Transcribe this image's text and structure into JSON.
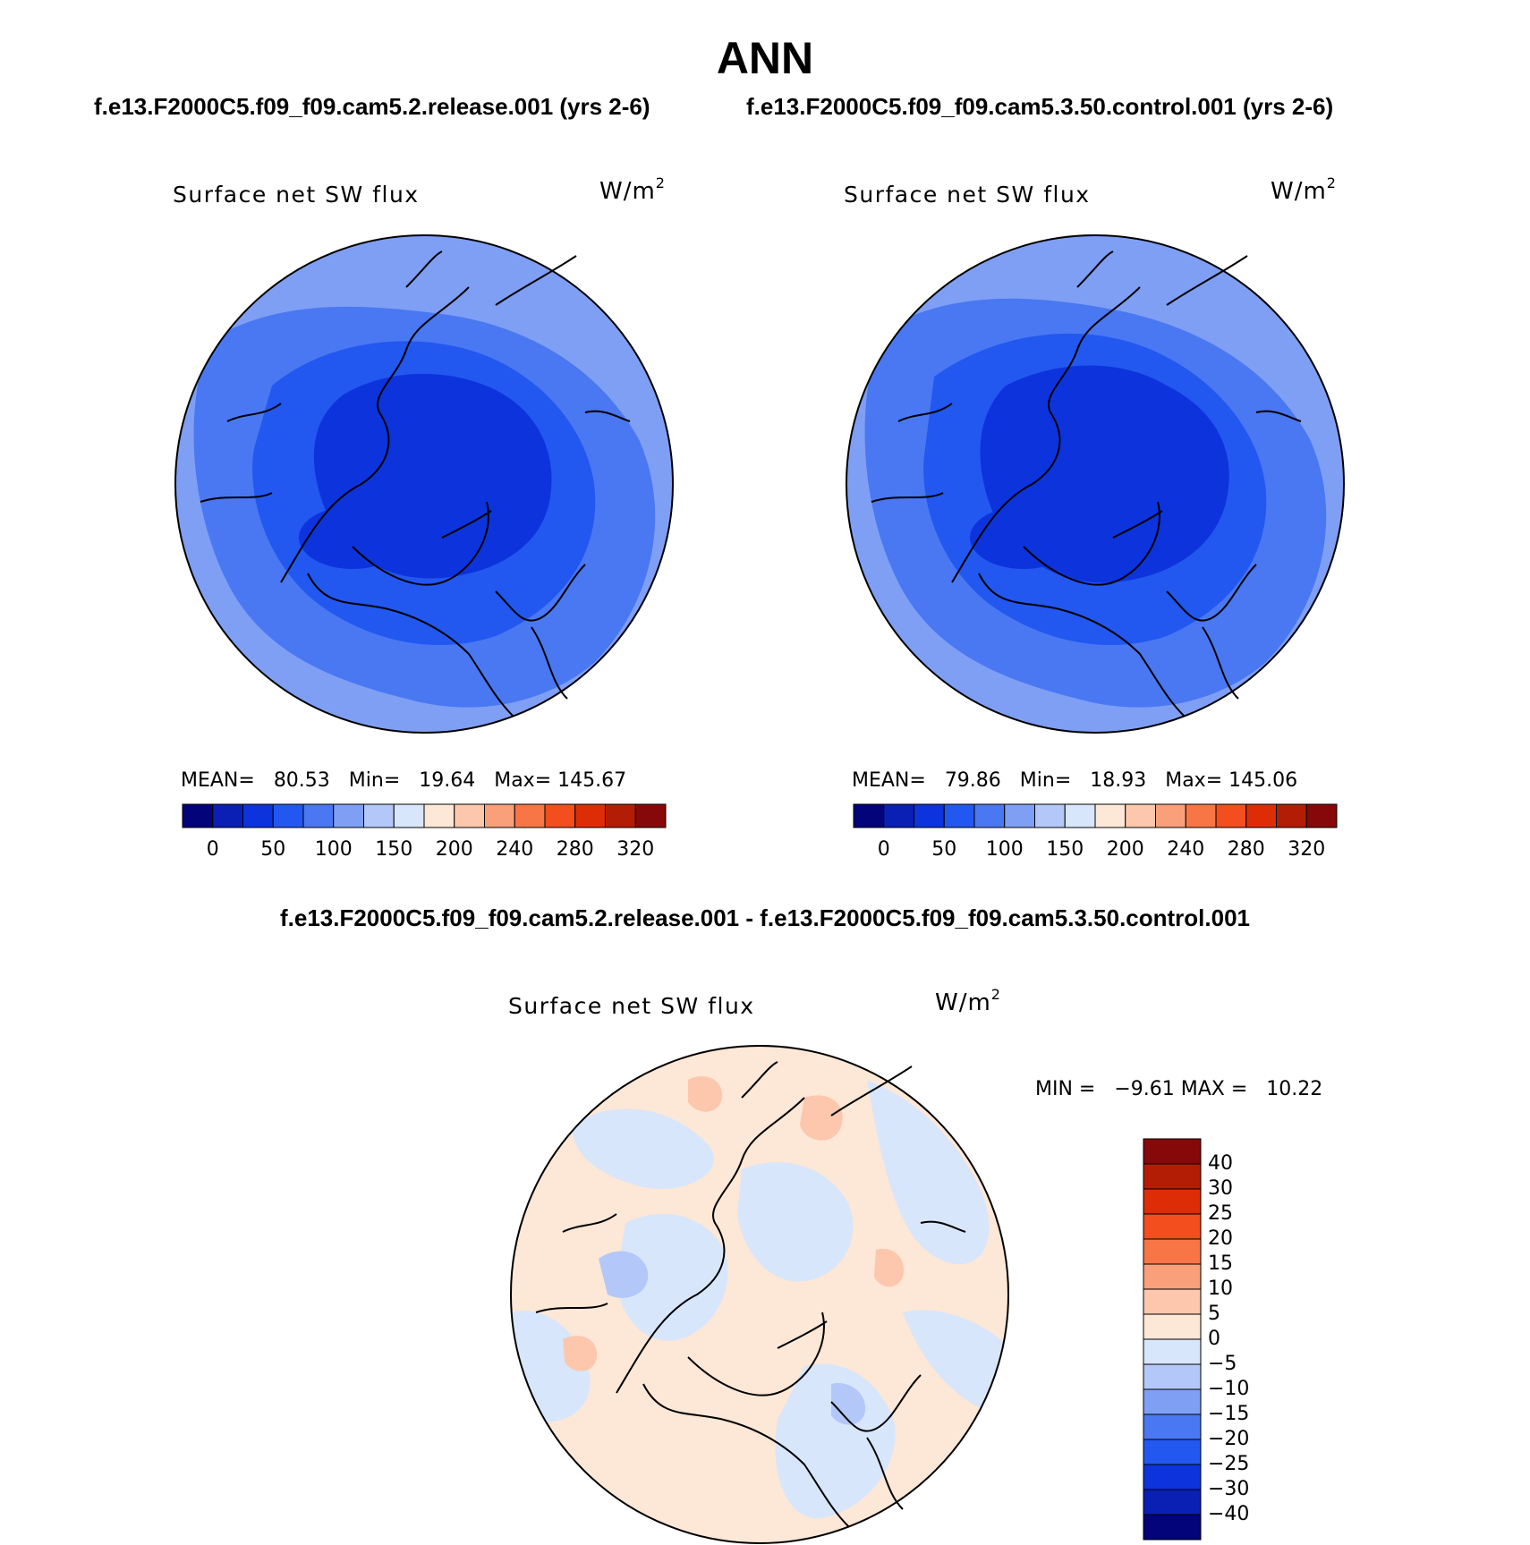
{
  "title": "ANN",
  "case_titles": {
    "left": "f.e13.F2000C5.f09_f09.cam5.2.release.001 (yrs 2-6)",
    "right": "f.e13.F2000C5.f09_f09.cam5.3.50.control.001 (yrs 2-6)"
  },
  "diff_title": "f.e13.F2000C5.f09_f09.cam5.2.release.001 - f.e13.F2000C5.f09_f09.cam5.3.50.control.001",
  "panels": [
    {
      "variable": "Surface net SW flux",
      "units": "W/m",
      "units_sup": "2",
      "stats": {
        "mean_label": "MEAN=",
        "mean": "80.53",
        "min_label": "Min=",
        "min": "19.64",
        "max_label": "Max=",
        "max": "145.67"
      }
    },
    {
      "variable": "Surface net SW flux",
      "units": "W/m",
      "units_sup": "2",
      "stats": {
        "mean_label": "MEAN=",
        "mean": "79.86",
        "min_label": "Min=",
        "min": "18.93",
        "max_label": "Max=",
        "max": "145.06"
      }
    }
  ],
  "diff_panel": {
    "variable": "Surface net SW flux",
    "units": "W/m",
    "units_sup": "2",
    "min_label": "MIN =",
    "min": "−9.61",
    "max_label": "MAX =",
    "max": "10.22"
  },
  "colorbar_main": {
    "colors": [
      "#03037a",
      "#0a1fb4",
      "#0d34dc",
      "#2258f0",
      "#4a78f2",
      "#7f9ff5",
      "#b3c8f8",
      "#d8e6fb",
      "#fde7d6",
      "#fcc7ac",
      "#f9a07a",
      "#f87645",
      "#f24e1e",
      "#dc2d07",
      "#b41d05",
      "#870808"
    ],
    "tick_labels": [
      "0",
      "50",
      "100",
      "150",
      "200",
      "240",
      "280",
      "320"
    ]
  },
  "colorbar_diff": {
    "colors": [
      "#870808",
      "#b41d05",
      "#dc2d07",
      "#f24e1e",
      "#f87645",
      "#f9a07a",
      "#fcc7ac",
      "#fde7d6",
      "#d8e6fb",
      "#b3c8f8",
      "#7f9ff5",
      "#4a78f2",
      "#2258f0",
      "#0d34dc",
      "#0a1fb4",
      "#03037a"
    ],
    "tick_labels": [
      "40",
      "30",
      "25",
      "20",
      "15",
      "10",
      "5",
      "0",
      "−5",
      "−10",
      "−15",
      "−20",
      "−25",
      "−30",
      "−40"
    ]
  },
  "map_fill": {
    "left": {
      "outer": "#7f9ff5",
      "mid": "#4a78f2",
      "inner": "#2258f0",
      "core": "#0d34dc"
    },
    "right": {
      "outer": "#7f9ff5",
      "mid": "#4a78f2",
      "inner": "#2258f0",
      "core": "#0d34dc"
    },
    "diff": {
      "base": "#fde7d6",
      "neg": "#d8e6fb",
      "neg2": "#b3c8f8",
      "pos": "#fcc7ac"
    }
  }
}
